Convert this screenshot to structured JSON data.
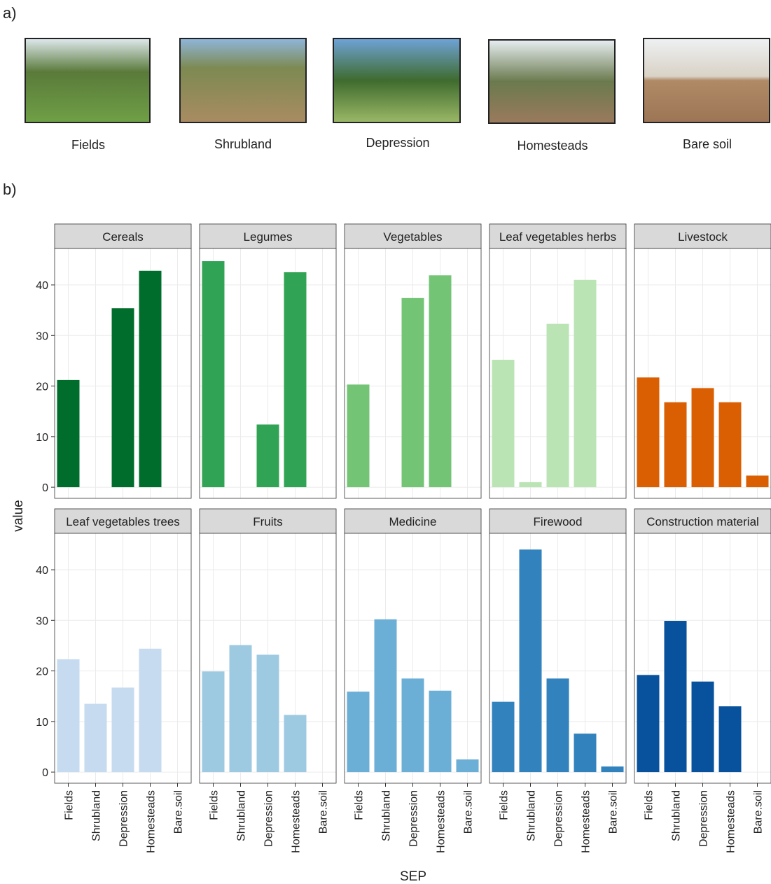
{
  "figure_labels": [
    "a)",
    "b)"
  ],
  "photos": [
    {
      "label": "Fields"
    },
    {
      "label": "Shrubland"
    },
    {
      "label": "Depression"
    },
    {
      "label": "Homesteads"
    },
    {
      "label": "Bare soil"
    }
  ],
  "chart_data": {
    "type": "bar",
    "categories": [
      "Fields",
      "Shrubland",
      "Depression",
      "Homesteads",
      "Bare.soil"
    ],
    "ylim": [
      -2.2,
      47.2
    ],
    "yticks": [
      0,
      10,
      20,
      30,
      40
    ],
    "grid": true,
    "xlabel": "SEP",
    "ylabel": "value",
    "facets": [
      {
        "title": "Cereals",
        "color": "#006d2c",
        "values": [
          21.2,
          null,
          35.4,
          42.8,
          null
        ]
      },
      {
        "title": "Legumes",
        "color": "#31a354",
        "values": [
          44.7,
          null,
          12.4,
          42.5,
          null
        ]
      },
      {
        "title": "Vegetables",
        "color": "#74c476",
        "values": [
          20.3,
          null,
          37.4,
          41.9,
          null
        ]
      },
      {
        "title": "Leaf vegetables herbs",
        "color": "#bae4b3",
        "values": [
          25.2,
          1.0,
          32.3,
          41.0,
          null
        ]
      },
      {
        "title": "Livestock",
        "color": "#d95f02",
        "values": [
          21.7,
          16.8,
          19.6,
          16.8,
          2.3
        ]
      },
      {
        "title": "Leaf vegetables trees",
        "color": "#c6dbef",
        "values": [
          22.3,
          13.5,
          16.7,
          24.4,
          null
        ]
      },
      {
        "title": "Fruits",
        "color": "#9ecae1",
        "values": [
          19.9,
          25.1,
          23.2,
          11.3,
          null
        ]
      },
      {
        "title": "Medicine",
        "color": "#6baed6",
        "values": [
          15.9,
          30.2,
          18.5,
          16.1,
          2.5
        ]
      },
      {
        "title": "Firewood",
        "color": "#3182bd",
        "values": [
          13.9,
          44.0,
          18.5,
          7.6,
          1.1
        ]
      },
      {
        "title": "Construction material",
        "color": "#08519c",
        "values": [
          19.2,
          29.9,
          17.9,
          13.0,
          null
        ]
      }
    ]
  }
}
